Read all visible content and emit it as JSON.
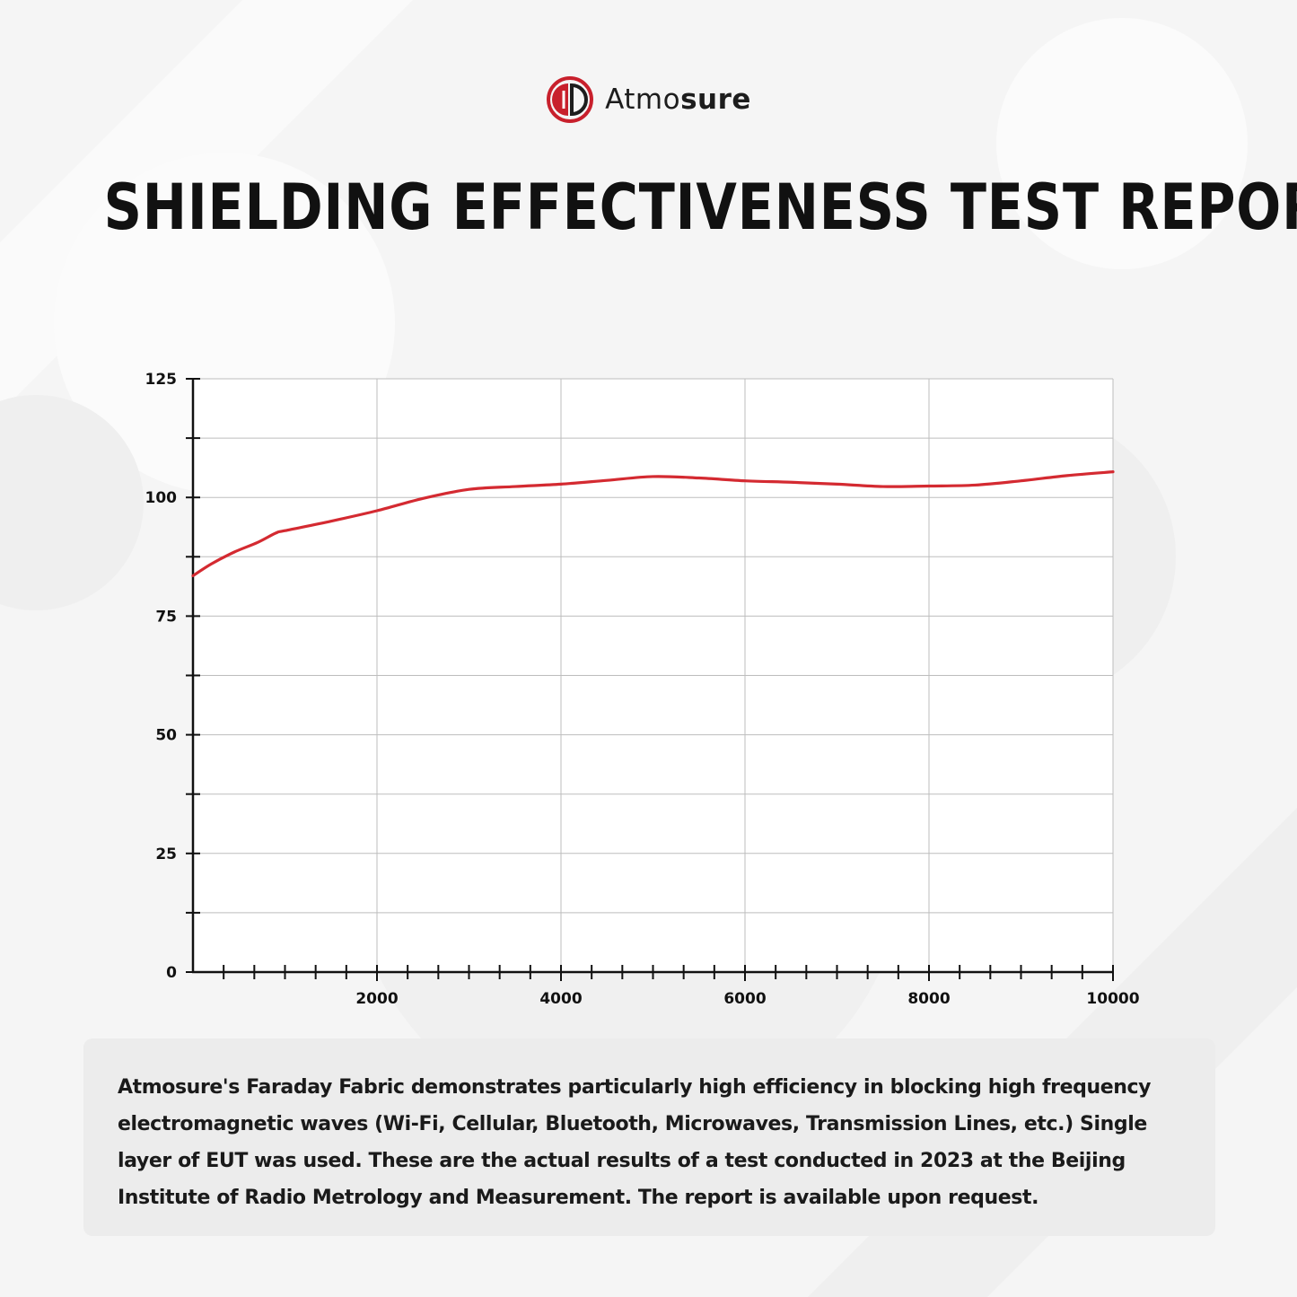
{
  "brand": {
    "name_light": "Atmo",
    "name_bold": "sure",
    "logo_icon": "atmosure-shield-logo",
    "logo_color": "#c8202c"
  },
  "header": {
    "title": "SHIELDING EFFECTIVENESS TEST REPORT"
  },
  "chart_data": {
    "type": "line",
    "title": "",
    "xlabel": "",
    "ylabel": "",
    "xlim": [
      0,
      10000
    ],
    "ylim": [
      0,
      125
    ],
    "x_ticks": [
      2000,
      4000,
      6000,
      8000,
      10000
    ],
    "y_ticks": [
      0,
      25,
      50,
      75,
      100,
      125
    ],
    "grid": true,
    "line_color": "#d42a31",
    "series": [
      {
        "x": [
          0,
          200,
          450,
          700,
          900,
          1000,
          1500,
          2000,
          2500,
          3000,
          3500,
          4000,
          4500,
          5000,
          5500,
          6000,
          6500,
          7000,
          7500,
          8000,
          8500,
          9000,
          9500,
          10000
        ],
        "values": [
          83.5,
          86,
          88.5,
          90.5,
          92.5,
          93,
          95,
          97.2,
          99.8,
          101.7,
          102.3,
          102.8,
          103.6,
          104.4,
          104.1,
          103.5,
          103.2,
          102.8,
          102.3,
          102.4,
          102.6,
          103.5,
          104.6,
          105.4
        ]
      }
    ]
  },
  "note": {
    "text": "Atmosure's Faraday Fabric demonstrates particularly high efficiency in blocking high frequency electromagnetic waves (Wi-Fi, Cellular, Bluetooth, Microwaves, Transmission Lines, etc.) Single layer of EUT was used. These are the actual results of a test conducted in 2023 at the Beijing Institute of Radio Metrology and Measurement. The report is available upon request."
  }
}
